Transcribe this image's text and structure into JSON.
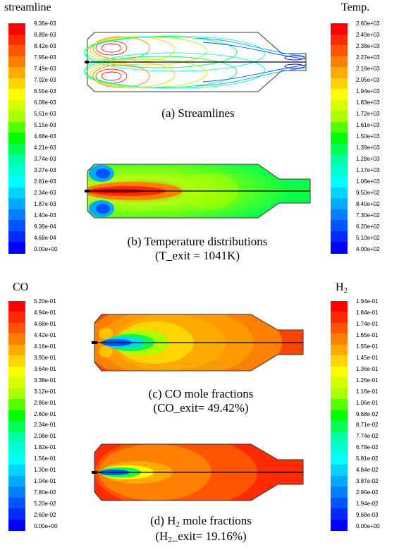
{
  "panels": {
    "streamline": {
      "title": "streamline",
      "labels": [
        "9.36e-03",
        "8.89e-03",
        "8.42e-03",
        "7.95e-03",
        "7.49e-03",
        "7.02e-03",
        "6.55e-03",
        "6.08e-03",
        "5.61e-03",
        "5.15e-03",
        "4.68e-03",
        "4.21e-03",
        "3.74e-03",
        "3.27e-03",
        "2.81e-03",
        "2.34e-03",
        "1.87e-03",
        "1.40e-03",
        "9.36e-04",
        "4.68e-04",
        "0.00e+00"
      ]
    },
    "temp": {
      "title": "Temp.",
      "labels": [
        "2.60e+03",
        "2.49e+03",
        "2.38e+03",
        "2.27e+03",
        "2.16e+03",
        "2.05e+03",
        "1.94e+03",
        "1.83e+03",
        "1.72e+03",
        "1.61e+03",
        "1.50e+03",
        "1.39e+03",
        "1.28e+03",
        "1.17e+03",
        "1.06e+03",
        "9.50e+02",
        "8.40e+02",
        "7.30e+02",
        "6.20e+02",
        "5.10e+02",
        "4.00e+02"
      ]
    },
    "co": {
      "title": "CO",
      "labels": [
        "5.20e-01",
        "4.94e-01",
        "4.68e-01",
        "4.42e-01",
        "4.16e-01",
        "3.90e-01",
        "3.64e-01",
        "3.38e-01",
        "3.12e-01",
        "2.86e-01",
        "2.60e-01",
        "2.34e-01",
        "2.08e-01",
        "1.82e-01",
        "1.56e-01",
        "1.30e-01",
        "1.04e-01",
        "7.80e-02",
        "5.20e-02",
        "2.60e-02",
        "0.00e+00"
      ]
    },
    "h2": {
      "title_main": "H",
      "title_sub": "2",
      "labels": [
        "1.94e-01",
        "1.84e-01",
        "1.74e-01",
        "1.65e-01",
        "1.55e-01",
        "1.45e-01",
        "1.36e-01",
        "1.26e-01",
        "1.16e-01",
        "1.06e-01",
        "9.68e-02",
        "8.71e-02",
        "7.74e-02",
        "6.78e-02",
        "5.81e-02",
        "4.84e-02",
        "3.87e-02",
        "2.90e-02",
        "1.94e-02",
        "9.68e-03",
        "0.00e+00"
      ]
    }
  },
  "captions": {
    "a": "(a) Streamlines",
    "b1": "(b) Temperature distributions",
    "b2": "(T_exit = 1041K)",
    "c1": "(c) CO mole fractions",
    "c2": "(CO_exit= 49.42%)",
    "d1_pre": "(d) H",
    "d1_sub": "2",
    "d1_post": " mole fractions",
    "d2_pre": "(H",
    "d2_sub": "2",
    "d2_post": "_exit= 19.16%)"
  },
  "colors": [
    "#ff0000",
    "#ff2a00",
    "#ff5500",
    "#ff7f00",
    "#ffaa00",
    "#ffd400",
    "#ffff00",
    "#d4ff00",
    "#aaff00",
    "#55ff00",
    "#00ff00",
    "#00ff55",
    "#00ffaa",
    "#00ffd4",
    "#00ffff",
    "#00d4ff",
    "#00aaff",
    "#0080ff",
    "#0055ff",
    "#002aff",
    "#0000ff"
  ]
}
